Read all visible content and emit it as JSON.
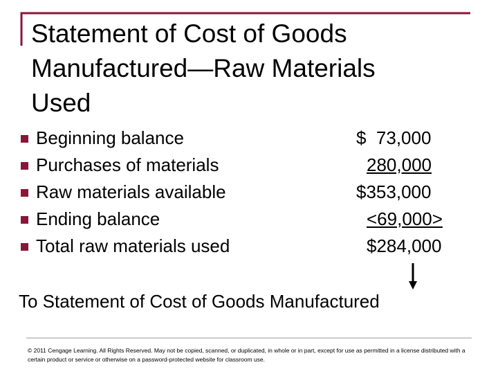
{
  "title": [
    "Statement of Cost of Goods",
    "Manufactured—Raw Materials",
    "Used"
  ],
  "rows": [
    {
      "label": "Beginning balance",
      "amount": "$  73,000"
    },
    {
      "label": "Purchases of materials",
      "amount": "280,000"
    },
    {
      "label": "Raw materials available",
      "amount": "$353,000"
    },
    {
      "label": "Ending balance",
      "amount": "<69,000>"
    },
    {
      "label": "Total raw materials used",
      "amount": "$284,000"
    }
  ],
  "note": "To Statement of Cost of Goods Manufactured",
  "copyright": "© 2011 Cengage Learning. All Rights Reserved. May not be copied, scanned, or duplicated, in whole or in part, except for use as permitted in a license distributed with a certain product or service or otherwise on a password-protected website for classroom use."
}
